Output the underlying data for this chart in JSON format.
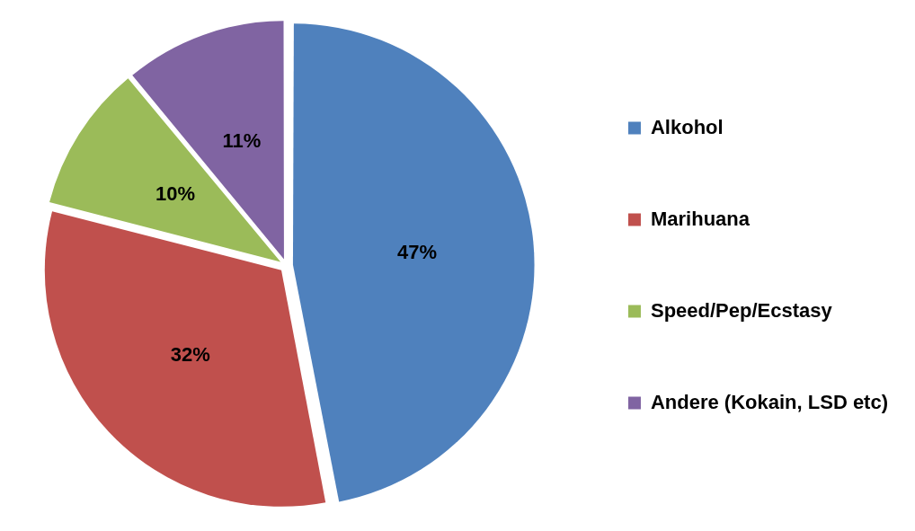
{
  "chart_data": {
    "type": "pie",
    "categories": [
      "Alkohol",
      "Marihuana",
      "Speed/Pep/Ecstasy",
      "Andere (Kokain, LSD etc)"
    ],
    "values": [
      47,
      32,
      10,
      11
    ],
    "colors": [
      "#4f81bd",
      "#c0504d",
      "#9bbb59",
      "#8064a2"
    ],
    "value_labels": [
      "47%",
      "32%",
      "10%",
      "11%"
    ],
    "legend": "right"
  }
}
